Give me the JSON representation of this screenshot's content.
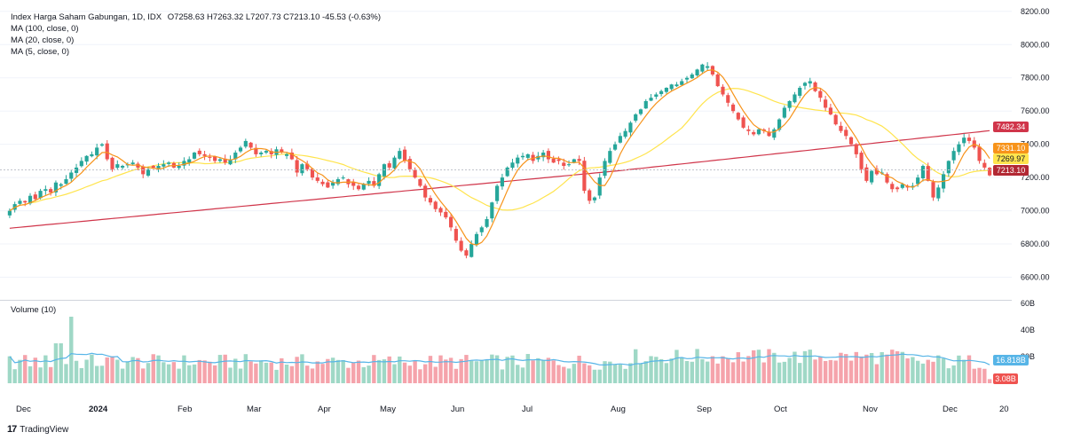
{
  "header": {
    "symbol": "Index Harga Saham Gabungan, 1D, IDX",
    "ohlc": "O7258.63  H7263.32  L7207.73  C7213.10  -45.53 (-0.63%)",
    "ma1": "MA (100, close, 0)",
    "ma2": "MA (20, close, 0)",
    "ma3": "MA (5, close, 0)",
    "volume_label": "Volume (10)"
  },
  "footer": {
    "brand": "TradingView",
    "logo": "17"
  },
  "price_tags": {
    "ma100": "7482.34",
    "ma5": "7331.10",
    "ma20": "7269.97",
    "last": "7213.10",
    "vol_ma": "16.818B",
    "vol": "3.08B"
  },
  "colors": {
    "up": "#26a69a",
    "down": "#ef5350",
    "up_vol": "#9fd8c6",
    "down_vol": "#f5a3ab",
    "ma100": "#d0354a",
    "ma20": "#ffe44d",
    "ma5": "#f7931a",
    "vol_ma": "#57b5e7"
  },
  "chart_data": {
    "type": "candlestick",
    "price_axis": {
      "ticks": [
        "8200.00",
        "8000.00",
        "7800.00",
        "7600.00",
        "7400.00",
        "7200.00",
        "7000.00",
        "6800.00",
        "6600.00"
      ],
      "range": [
        6480,
        8215
      ]
    },
    "volume_axis": {
      "ticks": [
        "60B",
        "40B",
        "20B"
      ],
      "range": [
        0,
        60
      ]
    },
    "time_axis": [
      "Dec",
      "2024",
      "Feb",
      "Mar",
      "Apr",
      "May",
      "Jun",
      "Jul",
      "Aug",
      "Sep",
      "Oct",
      "Nov",
      "Dec",
      "20"
    ],
    "last_close": 7213.1,
    "closes": [
      7000,
      7040,
      7060,
      7050,
      7090,
      7070,
      7120,
      7130,
      7110,
      7170,
      7160,
      7190,
      7230,
      7260,
      7300,
      7330,
      7340,
      7380,
      7400,
      7310,
      7250,
      7280,
      7270,
      7280,
      7290,
      7260,
      7220,
      7250,
      7260,
      7270,
      7280,
      7290,
      7260,
      7270,
      7300,
      7310,
      7350,
      7340,
      7330,
      7320,
      7300,
      7310,
      7290,
      7310,
      7350,
      7380,
      7420,
      7380,
      7340,
      7350,
      7360,
      7340,
      7370,
      7350,
      7340,
      7310,
      7230,
      7280,
      7250,
      7200,
      7180,
      7160,
      7140,
      7170,
      7190,
      7200,
      7160,
      7150,
      7130,
      7160,
      7180,
      7150,
      7220,
      7280,
      7260,
      7320,
      7360,
      7300,
      7250,
      7200,
      7150,
      7080,
      7050,
      7010,
      6990,
      6960,
      6900,
      6820,
      6760,
      6730,
      6800,
      6860,
      6900,
      6950,
      7050,
      7150,
      7200,
      7260,
      7290,
      7320,
      7330,
      7340,
      7300,
      7330,
      7350,
      7310,
      7290,
      7300,
      7270,
      7280,
      7310,
      7300,
      7120,
      7060,
      7080,
      7200,
      7300,
      7360,
      7400,
      7450,
      7480,
      7530,
      7580,
      7610,
      7660,
      7680,
      7700,
      7720,
      7740,
      7760,
      7760,
      7780,
      7800,
      7820,
      7850,
      7880,
      7870,
      7820,
      7750,
      7700,
      7650,
      7600,
      7550,
      7500,
      7480,
      7460,
      7490,
      7480,
      7450,
      7490,
      7550,
      7620,
      7660,
      7700,
      7740,
      7770,
      7780,
      7720,
      7680,
      7620,
      7580,
      7520,
      7480,
      7450,
      7400,
      7340,
      7250,
      7180,
      7240,
      7220,
      7230,
      7170,
      7130,
      7130,
      7160,
      7140,
      7150,
      7200,
      7270,
      7180,
      7080,
      7140,
      7220,
      7300,
      7360,
      7400,
      7440,
      7420,
      7380,
      7300,
      7260,
      7213
    ]
  }
}
